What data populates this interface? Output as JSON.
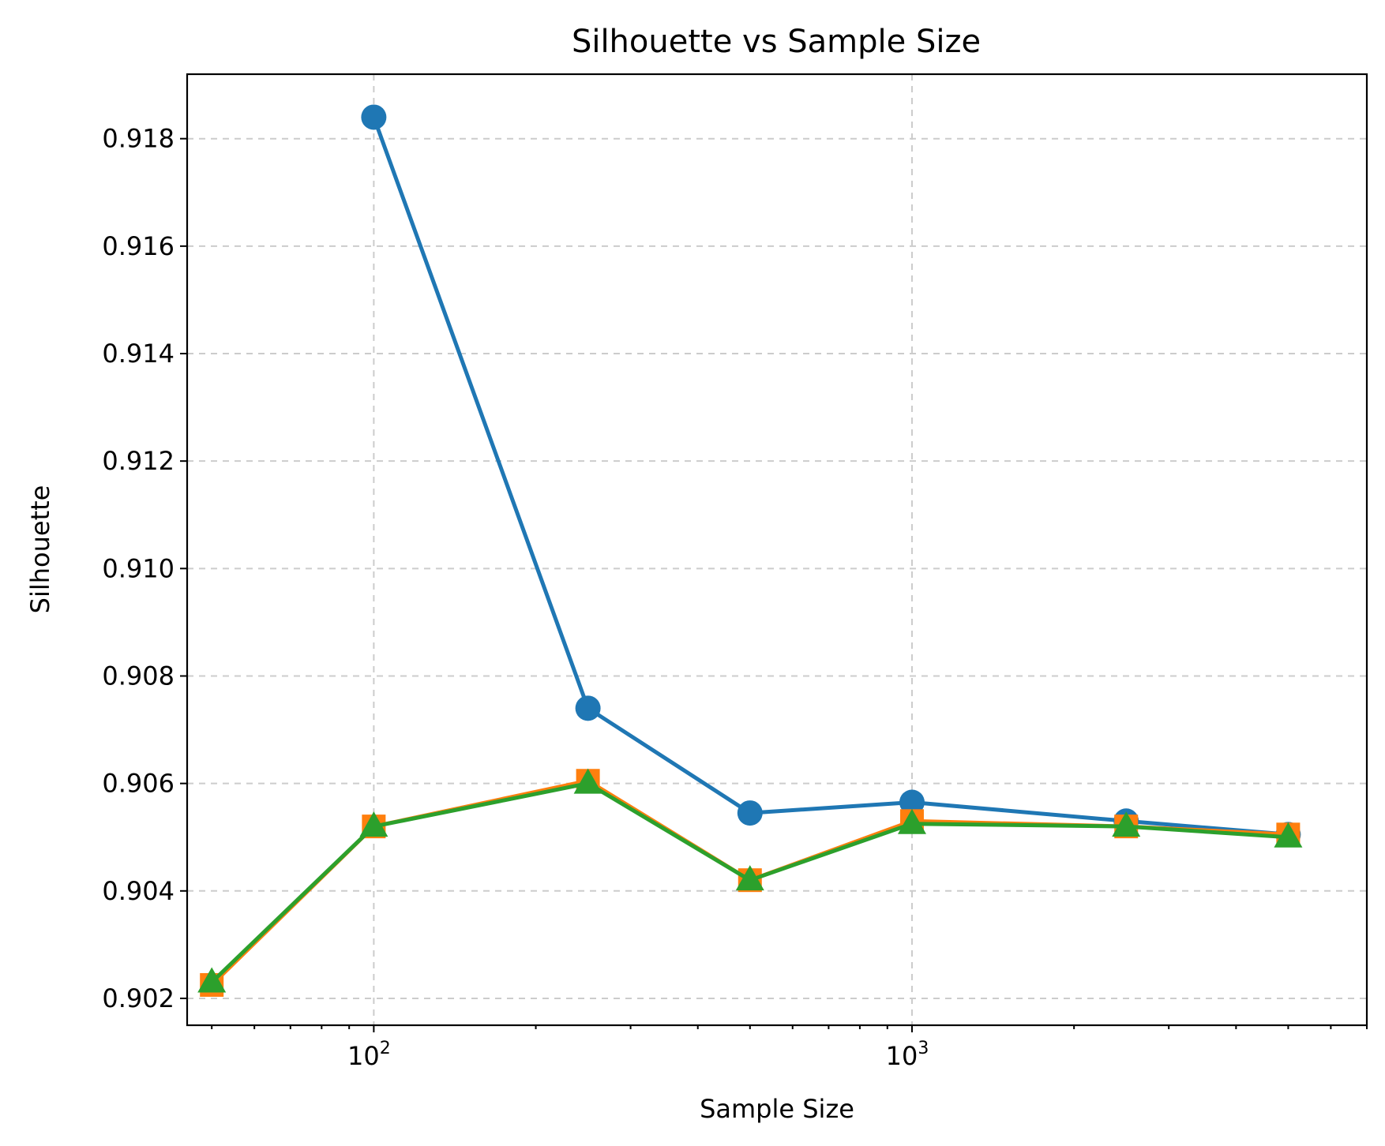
{
  "chart_data": {
    "type": "line",
    "title": "Silhouette vs Sample Size",
    "xlabel": "Sample Size",
    "ylabel": "Silhouette",
    "xscale": "log",
    "xlim": [
      45,
      7000
    ],
    "ylim": [
      0.9015,
      0.9192
    ],
    "grid": true,
    "x_ticks": [
      {
        "value": 100,
        "base": "10",
        "exp": "2"
      },
      {
        "value": 1000,
        "base": "10",
        "exp": "3"
      }
    ],
    "y_ticks": [
      "0.902",
      "0.904",
      "0.906",
      "0.908",
      "0.910",
      "0.912",
      "0.914",
      "0.916",
      "0.918"
    ],
    "series": [
      {
        "color": "#1f77b4",
        "marker": "circle",
        "points": [
          [
            100,
            0.9184
          ],
          [
            250,
            0.9074
          ],
          [
            500,
            0.90545
          ],
          [
            1000,
            0.90565
          ],
          [
            2500,
            0.9053
          ],
          [
            5000,
            0.90505
          ]
        ]
      },
      {
        "color": "#ff7f0e",
        "marker": "square",
        "points": [
          [
            50,
            0.90225
          ],
          [
            100,
            0.9052
          ],
          [
            250,
            0.90605
          ],
          [
            500,
            0.9042
          ],
          [
            1000,
            0.9053
          ],
          [
            2500,
            0.9052
          ],
          [
            5000,
            0.90505
          ]
        ]
      },
      {
        "color": "#2ca02c",
        "marker": "triangle",
        "points": [
          [
            50,
            0.9023
          ],
          [
            100,
            0.9052
          ],
          [
            250,
            0.906
          ],
          [
            500,
            0.9042
          ],
          [
            1000,
            0.90525
          ],
          [
            2500,
            0.9052
          ],
          [
            5000,
            0.905
          ]
        ]
      }
    ]
  }
}
